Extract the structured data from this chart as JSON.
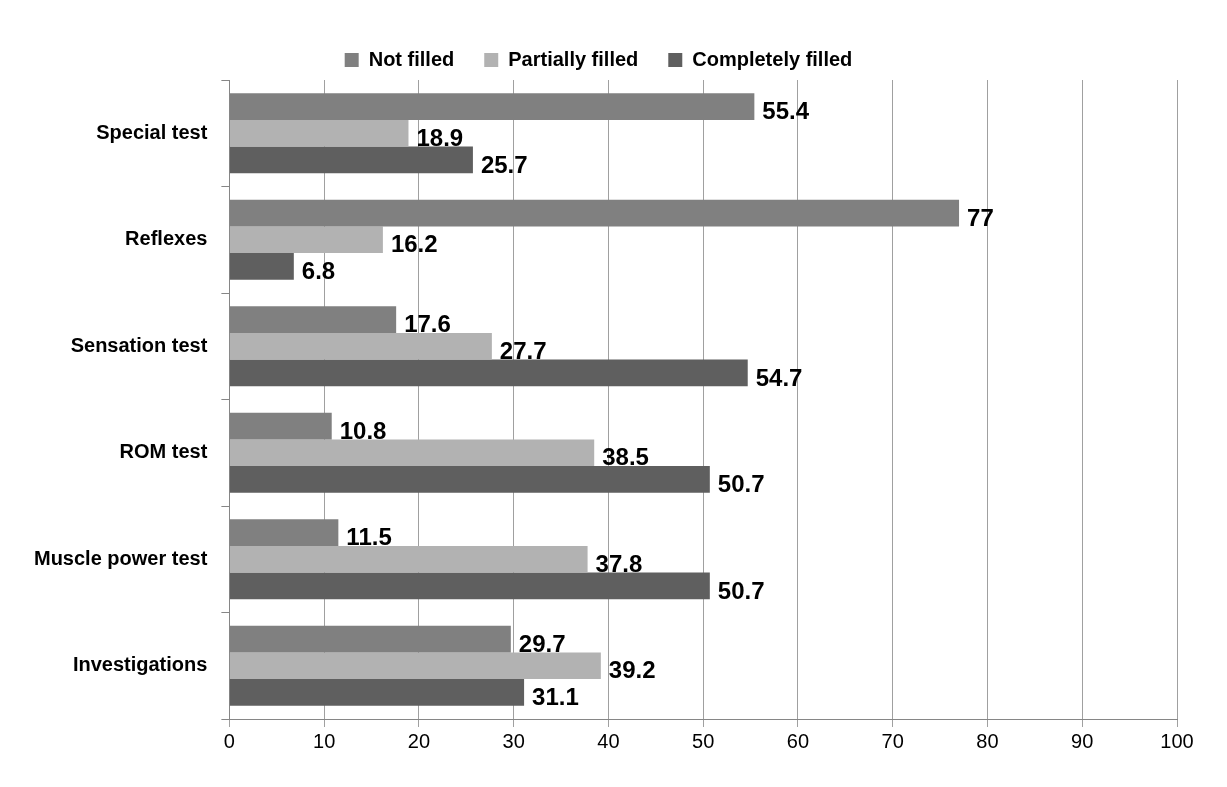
{
  "chart_data": {
    "type": "bar",
    "orientation": "horizontal",
    "categories": [
      "Special test",
      "Reflexes",
      "Sensation test",
      "ROM test",
      "Muscle power test",
      "Investigations"
    ],
    "series": [
      {
        "name": "Not filled",
        "color": "#808080",
        "values": [
          55.4,
          77,
          17.6,
          10.8,
          11.5,
          29.7
        ]
      },
      {
        "name": "Partially filled",
        "color": "#b2b2b2",
        "values": [
          18.9,
          16.2,
          27.7,
          38.5,
          37.8,
          39.2
        ]
      },
      {
        "name": "Completely filled",
        "color": "#5f5f5f",
        "values": [
          25.7,
          6.8,
          54.7,
          50.7,
          50.7,
          31.1
        ]
      }
    ],
    "xlim": [
      0,
      100
    ],
    "xticks": [
      0,
      10,
      20,
      30,
      40,
      50,
      60,
      70,
      80,
      90,
      100
    ],
    "grid": "x",
    "legend": "top",
    "data_labels": true
  }
}
